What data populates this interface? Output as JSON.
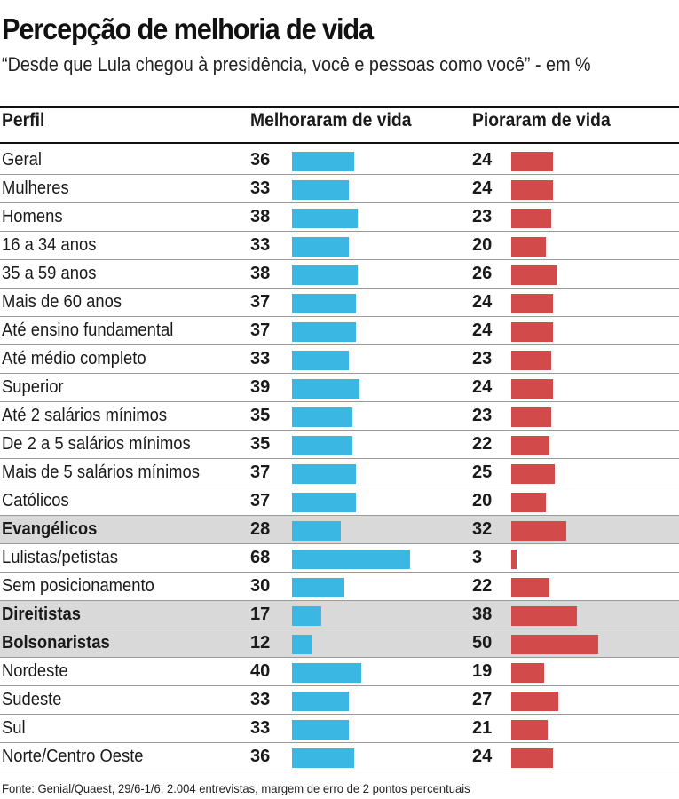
{
  "title": "Percepção de melhoria de vida",
  "subtitle": "“Desde que Lula chegou à presidência, você e pessoas como você” - em %",
  "headers": {
    "perfil": "Perfil",
    "melhoraram": "Melhoraram de vida",
    "pioraram": "Pioraram de vida"
  },
  "footer": "Fonte: Genial/Quaest, 29/6-1/6, 2.004 entrevistas, margem de erro de 2 pontos percentuais",
  "colors": {
    "melhoraram": "#3ab7e2",
    "pioraram": "#d24a4a",
    "highlight_row": "#d9d9d9"
  },
  "chart_data": {
    "type": "bar",
    "orientation": "horizontal",
    "unit": "%",
    "categories": [
      "Geral",
      "Mulheres",
      "Homens",
      "16 a 34 anos",
      "35 a 59 anos",
      "Mais de 60 anos",
      "Até ensino fundamental",
      "Até médio completo",
      "Superior",
      "Até 2 salários mínimos",
      "De 2 a 5 salários mínimos",
      "Mais de 5 salários mínimos",
      "Católicos",
      "Evangélicos",
      "Lulistas/petistas",
      "Sem posicionamento",
      "Direitistas",
      "Bolsonaristas",
      "Nordeste",
      "Sudeste",
      "Sul",
      "Norte/Centro Oeste"
    ],
    "highlighted": [
      "Evangélicos",
      "Direitistas",
      "Bolsonaristas"
    ],
    "series": [
      {
        "name": "Melhoraram de vida",
        "values": [
          36,
          33,
          38,
          33,
          38,
          37,
          37,
          33,
          39,
          35,
          35,
          37,
          37,
          28,
          68,
          30,
          17,
          12,
          40,
          33,
          33,
          36
        ]
      },
      {
        "name": "Pioraram de vida",
        "values": [
          24,
          24,
          23,
          20,
          26,
          24,
          24,
          23,
          24,
          23,
          22,
          25,
          20,
          32,
          3,
          22,
          38,
          50,
          19,
          27,
          21,
          24
        ]
      }
    ]
  }
}
